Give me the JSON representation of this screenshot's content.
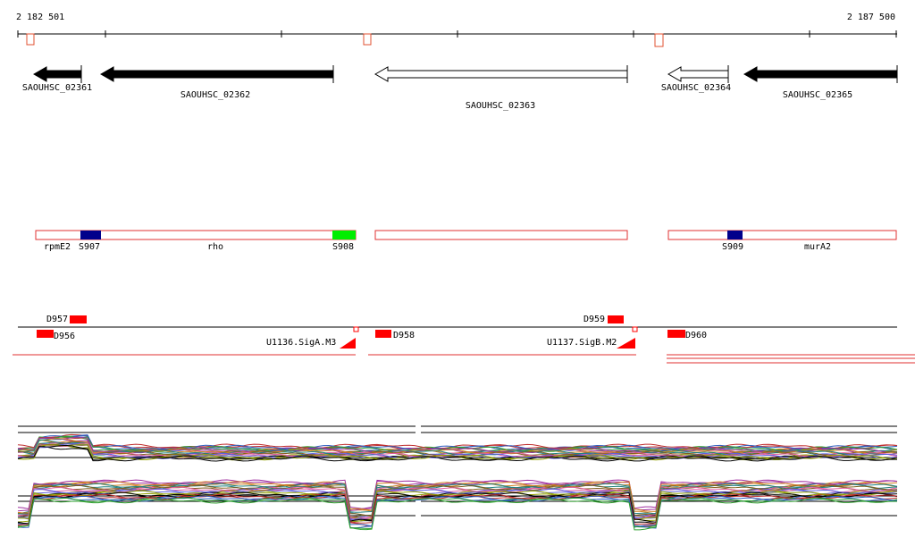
{
  "axis": {
    "start": "2 182 501",
    "end": "2 187 500"
  },
  "genes": [
    "SAOUHSC_02361",
    "SAOUHSC_02362",
    "SAOUHSC_02363",
    "SAOUHSC_02364",
    "SAOUHSC_02365"
  ],
  "regions": [
    "rpmE2",
    "S907",
    "rho",
    "S908",
    "S909",
    "murA2"
  ],
  "features": [
    "D957",
    "D956",
    "U1136.SigA.M3",
    "D958",
    "D959",
    "U1137.SigB.M2",
    "D960"
  ]
}
